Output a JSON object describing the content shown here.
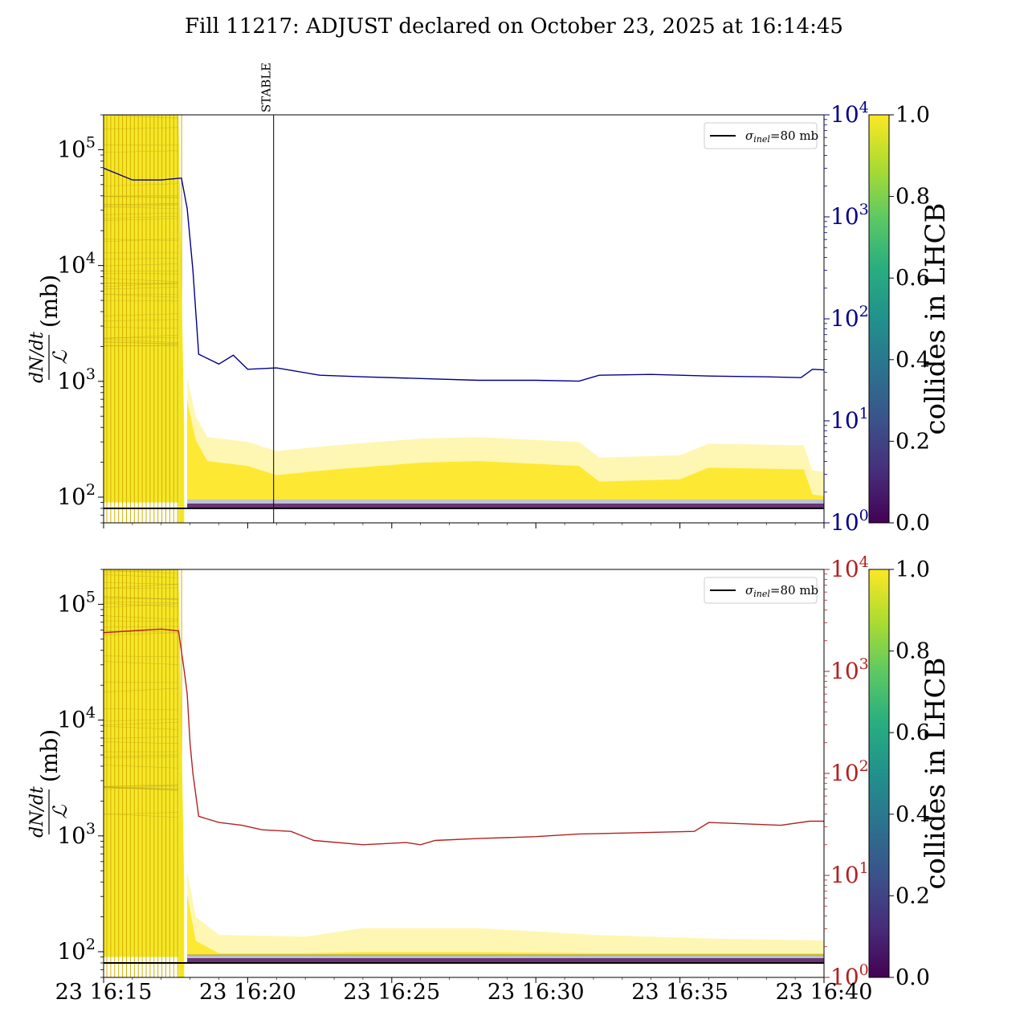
{
  "figure": {
    "title": "Fill 11217: ADJUST declared on October 23, 2025 at 16:14:45"
  },
  "chart_data": [
    {
      "type": "line",
      "panel": "top",
      "ylabel_num": "dN/dt",
      "ylabel_den": "ℒ",
      "ylabel_unit": "(mb)",
      "yscale": "log",
      "ylim": [
        60,
        200000
      ],
      "yticks": [
        {
          "base": "10",
          "exp": "2",
          "value": 100
        },
        {
          "base": "10",
          "exp": "3",
          "value": 1000
        },
        {
          "base": "10",
          "exp": "4",
          "value": 10000
        },
        {
          "base": "10",
          "exp": "5",
          "value": 100000
        }
      ],
      "y2scale": "log",
      "y2lim": [
        1,
        10000
      ],
      "y2ticks": [
        {
          "base": "10",
          "exp": "0",
          "value": 1
        },
        {
          "base": "10",
          "exp": "1",
          "value": 10
        },
        {
          "base": "10",
          "exp": "2",
          "value": 100
        },
        {
          "base": "10",
          "exp": "3",
          "value": 1000
        },
        {
          "base": "10",
          "exp": "4",
          "value": 10000
        }
      ],
      "y2color": "#00008b",
      "xlim": [
        "16:15",
        "16:40"
      ],
      "xticks": [
        "23 16:15",
        "23 16:20",
        "23 16:25",
        "23 16:30",
        "23 16:35",
        "23 16:40"
      ],
      "xtick_labels_visible": false,
      "legend": {
        "label": "σ",
        "sub": "inel",
        "suffix": "=80 mb",
        "placement": "upper-right"
      },
      "reference_line": {
        "name": "σinel=80 mb",
        "value": 80,
        "color": "#000000"
      },
      "vline": {
        "label": "STABLE",
        "time": "16:20.9"
      },
      "band_colors": [
        "#440154",
        "#3b528b",
        "#fde725",
        "#f4e61e"
      ],
      "series": [
        {
          "axis": "right",
          "color": "#00008b",
          "x": [
            "16:15.0",
            "16:16.0",
            "16:17.0",
            "16:17.7",
            "16:17.9",
            "16:18.1",
            "16:18.3",
            "16:19.0",
            "16:19.5",
            "16:20.0",
            "16:21.0",
            "16:22.5",
            "16:24.0",
            "16:26.0",
            "16:28.0",
            "16:30.0",
            "16:31.5",
            "16:32.2",
            "16:34.0",
            "16:36.0",
            "16:38.0",
            "16:39.2",
            "16:39.6",
            "16:40.5"
          ],
          "y": [
            3000,
            2300,
            2300,
            2400,
            1200,
            300,
            45,
            36,
            44,
            32,
            33,
            28,
            27,
            26,
            25,
            25,
            24.5,
            28,
            28.5,
            27.5,
            27,
            26.5,
            32,
            31
          ]
        }
      ],
      "colorbar": {
        "label": "collides in LHCB",
        "range": [
          0.0,
          1.0
        ],
        "ticks": [
          "0.0",
          "0.2",
          "0.4",
          "0.6",
          "0.8",
          "1.0"
        ],
        "colormap": "viridis"
      }
    },
    {
      "type": "line",
      "panel": "bottom",
      "ylabel_num": "dN/dt",
      "ylabel_den": "ℒ",
      "ylabel_unit": "(mb)",
      "yscale": "log",
      "ylim": [
        60,
        200000
      ],
      "yticks": [
        {
          "base": "10",
          "exp": "2",
          "value": 100
        },
        {
          "base": "10",
          "exp": "3",
          "value": 1000
        },
        {
          "base": "10",
          "exp": "4",
          "value": 10000
        },
        {
          "base": "10",
          "exp": "5",
          "value": 100000
        }
      ],
      "y2scale": "log",
      "y2lim": [
        1,
        10000
      ],
      "y2ticks": [
        {
          "base": "10",
          "exp": "0",
          "value": 1
        },
        {
          "base": "10",
          "exp": "1",
          "value": 10
        },
        {
          "base": "10",
          "exp": "2",
          "value": 100
        },
        {
          "base": "10",
          "exp": "3",
          "value": 1000
        },
        {
          "base": "10",
          "exp": "4",
          "value": 10000
        }
      ],
      "y2color": "#b22222",
      "xlim": [
        "16:15",
        "16:40"
      ],
      "xticks": [
        "23 16:15",
        "23 16:20",
        "23 16:25",
        "23 16:30",
        "23 16:35",
        "23 16:40"
      ],
      "xtick_labels_visible": true,
      "legend": {
        "label": "σ",
        "sub": "inel",
        "suffix": "=80 mb",
        "placement": "upper-right"
      },
      "reference_line": {
        "name": "σinel=80 mb",
        "value": 80,
        "color": "#000000"
      },
      "band_colors": [
        "#440154",
        "#3b528b",
        "#fde725",
        "#f4e61e"
      ],
      "series": [
        {
          "axis": "right",
          "color": "#b22222",
          "x": [
            "16:15.0",
            "16:16.0",
            "16:17.0",
            "16:17.6",
            "16:17.8",
            "16:17.9",
            "16:18.0",
            "16:18.1",
            "16:18.3",
            "16:19.0",
            "16:19.8",
            "16:20.5",
            "16:21.5",
            "16:22.3",
            "16:24.0",
            "16:25.5",
            "16:26.0",
            "16:26.5",
            "16:28.0",
            "16:30.0",
            "16:31.5",
            "16:33.0",
            "16:35.5",
            "16:36.0",
            "16:38.5",
            "16:39.5",
            "16:40.5"
          ],
          "y": [
            2400,
            2500,
            2600,
            2500,
            1000,
            600,
            200,
            100,
            38,
            33,
            31,
            28,
            27,
            22,
            20,
            21,
            20,
            22,
            23,
            24,
            25.5,
            26,
            27,
            33,
            31,
            34,
            34
          ]
        }
      ],
      "colorbar": {
        "label": "collides in LHCB",
        "range": [
          0.0,
          1.0
        ],
        "ticks": [
          "0.0",
          "0.2",
          "0.4",
          "0.6",
          "0.8",
          "1.0"
        ],
        "colormap": "viridis"
      }
    }
  ]
}
